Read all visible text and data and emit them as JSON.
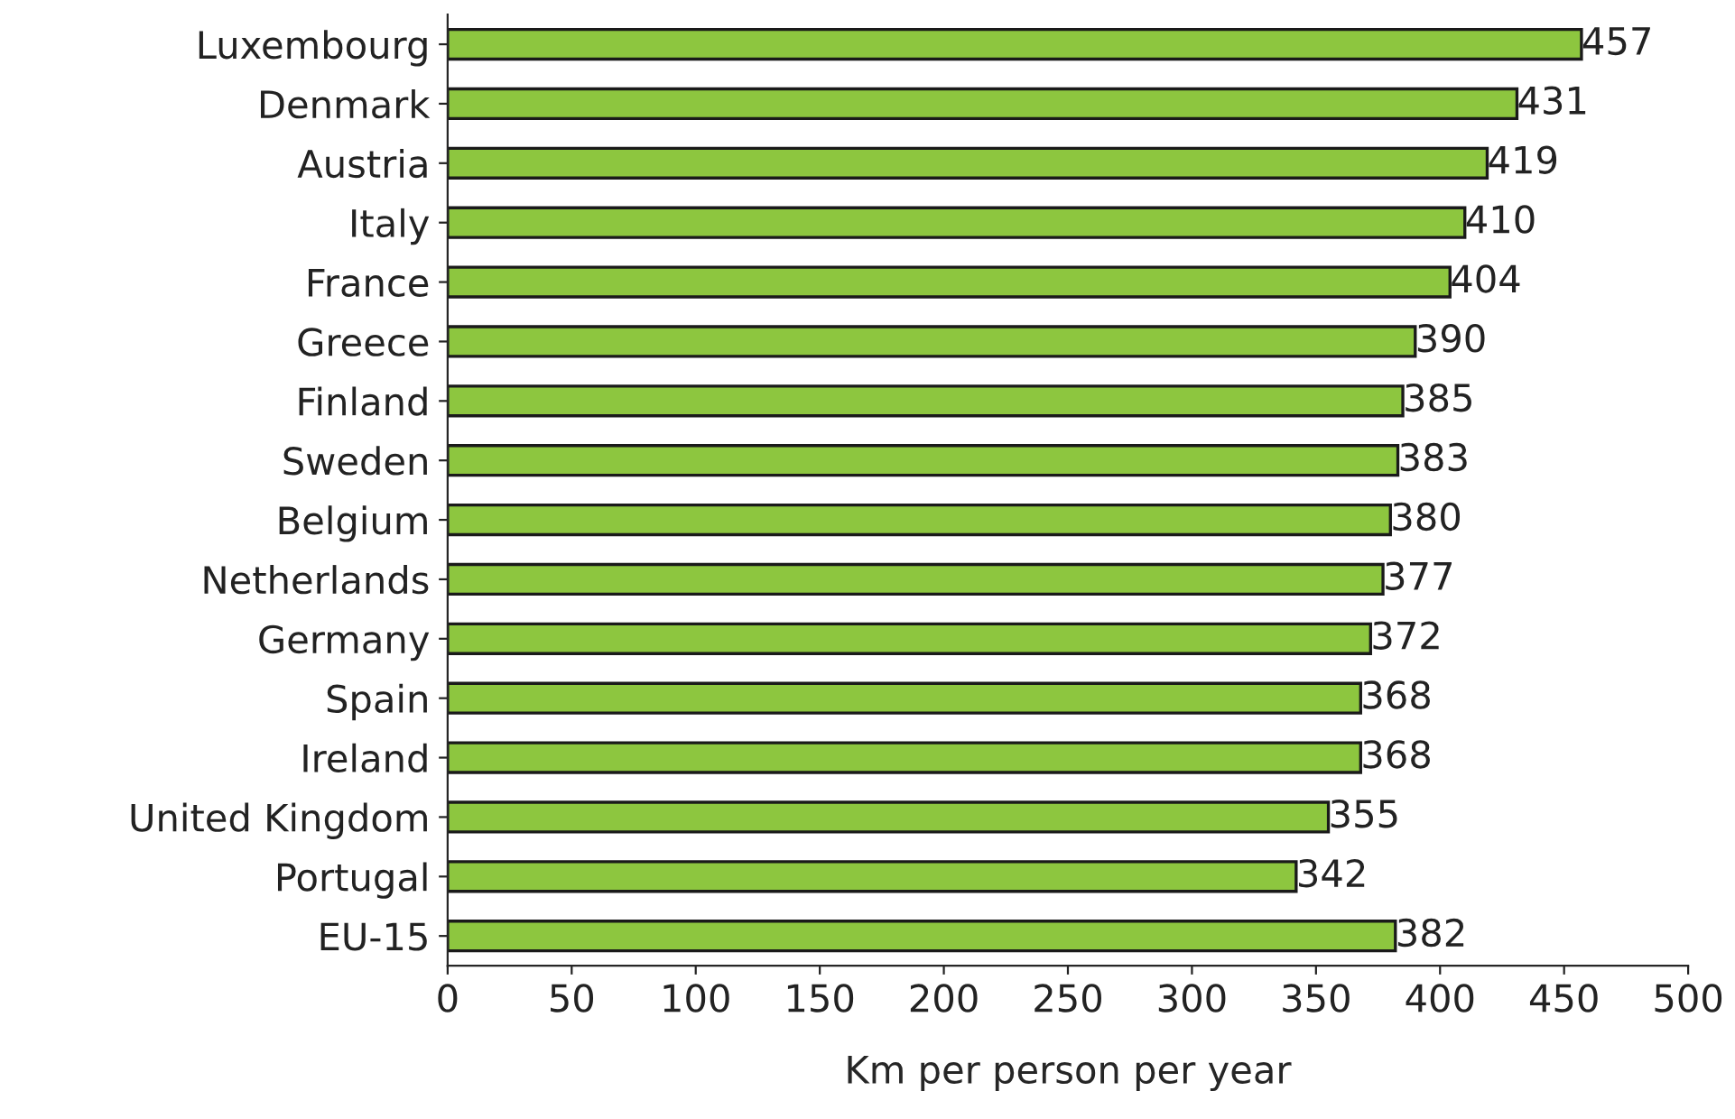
{
  "chart_data": {
    "type": "bar",
    "orientation": "horizontal",
    "xlabel": "Km per person per year",
    "categories": [
      "Luxembourg",
      "Denmark",
      "Austria",
      "Italy",
      "France",
      "Greece",
      "Finland",
      "Sweden",
      "Belgium",
      "Netherlands",
      "Germany",
      "Spain",
      "Ireland",
      "United Kingdom",
      "Portugal",
      "EU-15"
    ],
    "values": [
      457,
      431,
      419,
      410,
      404,
      390,
      385,
      383,
      380,
      377,
      372,
      368,
      368,
      355,
      342,
      382
    ],
    "color": "#8dc63f",
    "xlim": [
      0,
      500
    ],
    "xticks": [
      0,
      50,
      100,
      150,
      200,
      250,
      300,
      350,
      400,
      450,
      500
    ],
    "grid": false,
    "data_labels": true
  }
}
